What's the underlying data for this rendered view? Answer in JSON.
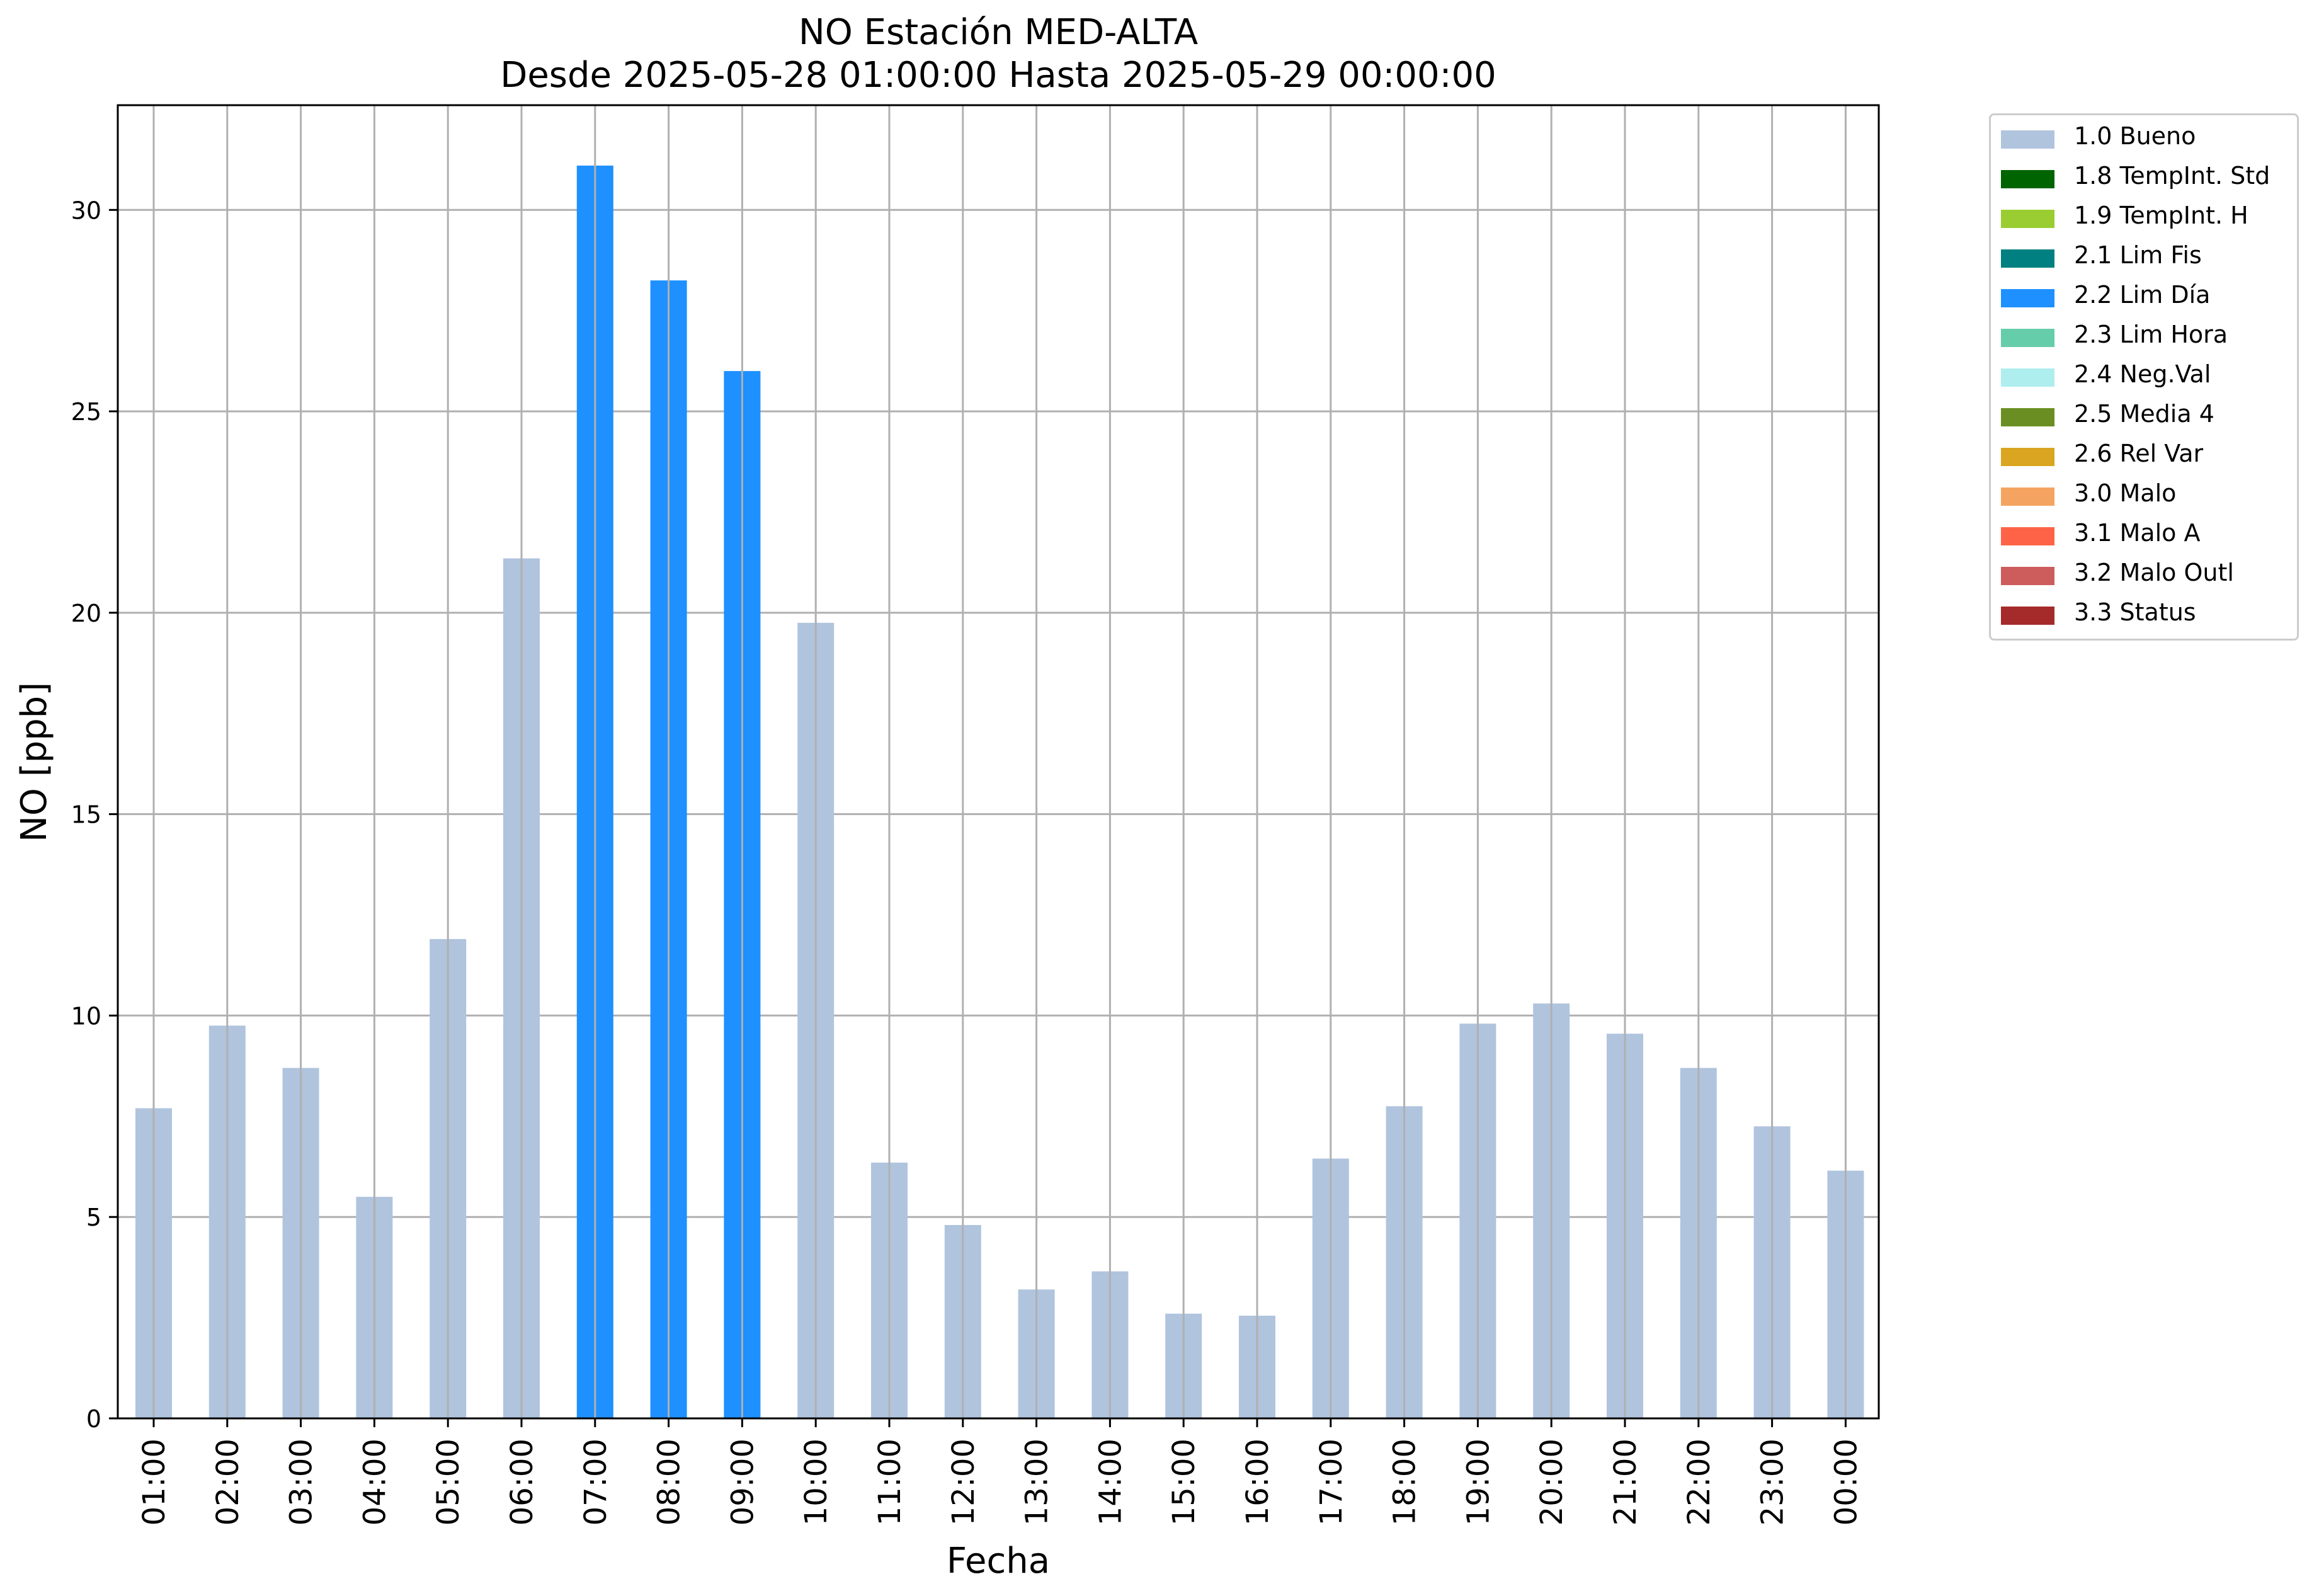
{
  "chart_data": {
    "type": "bar",
    "title": "NO Estación MED-ALTA",
    "subtitle": "Desde 2025-05-28 01:00:00 Hasta 2025-05-29 00:00:00",
    "xlabel": "Fecha",
    "ylabel": "NO [ppb]",
    "ylim": [
      0,
      32.6
    ],
    "yticks": [
      0,
      5,
      10,
      15,
      20,
      25,
      30
    ],
    "grid": true,
    "legend_position": "outside-right",
    "categories": [
      "01:00",
      "02:00",
      "03:00",
      "04:00",
      "05:00",
      "06:00",
      "07:00",
      "08:00",
      "09:00",
      "10:00",
      "11:00",
      "12:00",
      "13:00",
      "14:00",
      "15:00",
      "16:00",
      "17:00",
      "18:00",
      "19:00",
      "20:00",
      "21:00",
      "22:00",
      "23:00",
      "00:00"
    ],
    "values": [
      7.7,
      9.75,
      8.7,
      5.5,
      11.9,
      21.35,
      31.1,
      28.25,
      26.0,
      19.75,
      6.35,
      4.8,
      3.2,
      3.65,
      2.6,
      2.55,
      6.45,
      7.75,
      9.8,
      10.3,
      9.55,
      8.7,
      7.25,
      6.15
    ],
    "bar_flags": [
      "1.0 Bueno",
      "1.0 Bueno",
      "1.0 Bueno",
      "1.0 Bueno",
      "1.0 Bueno",
      "1.0 Bueno",
      "2.2 Lim Día",
      "2.2 Lim Día",
      "2.2 Lim Día",
      "1.0 Bueno",
      "1.0 Bueno",
      "1.0 Bueno",
      "1.0 Bueno",
      "1.0 Bueno",
      "1.0 Bueno",
      "1.0 Bueno",
      "1.0 Bueno",
      "1.0 Bueno",
      "1.0 Bueno",
      "1.0 Bueno",
      "1.0 Bueno",
      "1.0 Bueno",
      "1.0 Bueno",
      "1.0 Bueno"
    ],
    "legend": [
      {
        "label": "1.0 Bueno",
        "color": "#b0c4de"
      },
      {
        "label": "1.8 TempInt. Std",
        "color": "#006400"
      },
      {
        "label": "1.9 TempInt. H",
        "color": "#9acd32"
      },
      {
        "label": "2.1 Lim Fis",
        "color": "#008080"
      },
      {
        "label": "2.2 Lim Día",
        "color": "#1e90ff"
      },
      {
        "label": "2.3 Lim Hora",
        "color": "#66cdaa"
      },
      {
        "label": "2.4 Neg.Val",
        "color": "#afeeee"
      },
      {
        "label": "2.5 Media 4",
        "color": "#6b8e23"
      },
      {
        "label": "2.6 Rel Var",
        "color": "#daa520"
      },
      {
        "label": "3.0 Malo",
        "color": "#f4a460"
      },
      {
        "label": "3.1 Malo A",
        "color": "#ff6347"
      },
      {
        "label": "3.2 Malo Outl",
        "color": "#cd5c5c"
      },
      {
        "label": "3.3 Status",
        "color": "#a52a2a"
      }
    ]
  }
}
